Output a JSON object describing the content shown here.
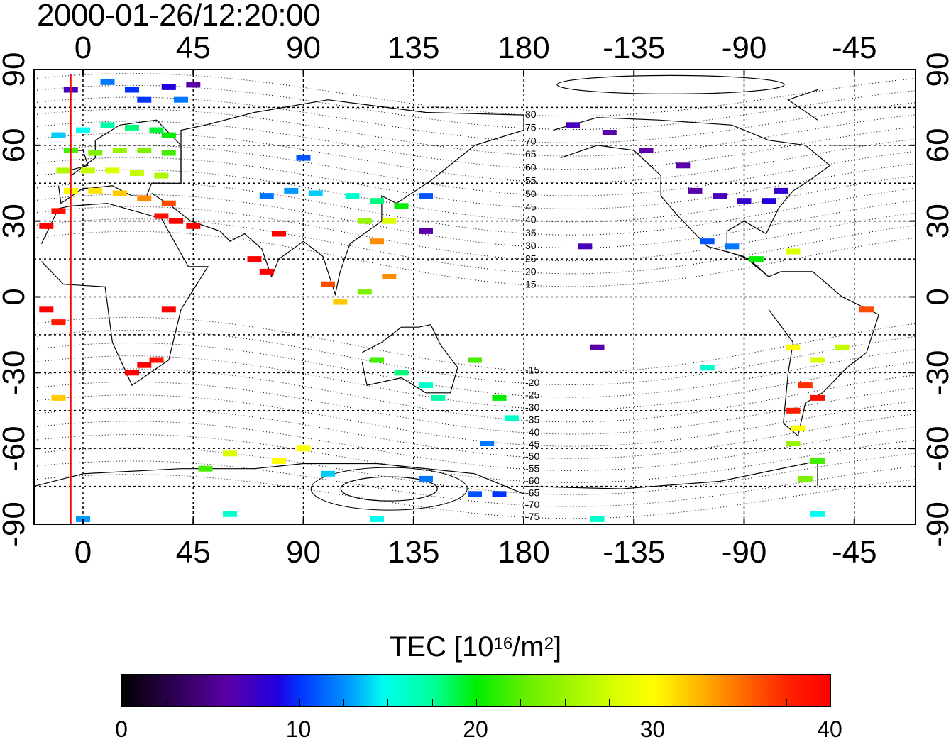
{
  "title": "2000-01-26/12:20:00",
  "axes": {
    "lon_ticks": [
      "0",
      "45",
      "90",
      "135",
      "180",
      "-135",
      "-90",
      "-45"
    ],
    "lat_ticks": [
      "90",
      "60",
      "30",
      "0",
      "-30",
      "-60",
      "-90"
    ]
  },
  "magnetic_lat_labels": [
    "80",
    "75",
    "70",
    "65",
    "60",
    "55",
    "50",
    "45",
    "40",
    "35",
    "30",
    "25",
    "20",
    "15",
    "-15",
    "-20",
    "-25",
    "-30",
    "-35",
    "-40",
    "-45",
    "-50",
    "-55",
    "-60",
    "-65",
    "-70",
    "-75"
  ],
  "colorbar": {
    "title_prefix": "TEC  [10",
    "title_sup1": "16",
    "title_mid": "/m",
    "title_sup2": "2",
    "title_suffix": "]",
    "tick_labels": [
      "0",
      "10",
      "20",
      "30",
      "40"
    ],
    "min": 0,
    "max": 40
  },
  "terminator_line_color": "#ff0000",
  "tec_points": [
    {
      "lon": -5,
      "lat": 82,
      "tec": 7
    },
    {
      "lon": 10,
      "lat": 85,
      "tec": 12
    },
    {
      "lon": 20,
      "lat": 82,
      "tec": 10
    },
    {
      "lon": 35,
      "lat": 83,
      "tec": 9
    },
    {
      "lon": 25,
      "lat": 78,
      "tec": 10
    },
    {
      "lon": 40,
      "lat": 78,
      "tec": 12
    },
    {
      "lon": 45,
      "lat": 84,
      "tec": 6
    },
    {
      "lon": -10,
      "lat": 64,
      "tec": 14
    },
    {
      "lon": 0,
      "lat": 66,
      "tec": 15
    },
    {
      "lon": 10,
      "lat": 68,
      "tec": 17
    },
    {
      "lon": 20,
      "lat": 67,
      "tec": 18
    },
    {
      "lon": 30,
      "lat": 66,
      "tec": 19
    },
    {
      "lon": 35,
      "lat": 64,
      "tec": 20
    },
    {
      "lon": -5,
      "lat": 58,
      "tec": 22
    },
    {
      "lon": 5,
      "lat": 57,
      "tec": 24
    },
    {
      "lon": 15,
      "lat": 58,
      "tec": 25
    },
    {
      "lon": 25,
      "lat": 58,
      "tec": 24
    },
    {
      "lon": 35,
      "lat": 57,
      "tec": 22
    },
    {
      "lon": -8,
      "lat": 50,
      "tec": 26
    },
    {
      "lon": 2,
      "lat": 50,
      "tec": 27
    },
    {
      "lon": 12,
      "lat": 50,
      "tec": 28
    },
    {
      "lon": 22,
      "lat": 49,
      "tec": 27
    },
    {
      "lon": 32,
      "lat": 48,
      "tec": 26
    },
    {
      "lon": -5,
      "lat": 42,
      "tec": 30
    },
    {
      "lon": 5,
      "lat": 42,
      "tec": 31
    },
    {
      "lon": 15,
      "lat": 41,
      "tec": 32
    },
    {
      "lon": 25,
      "lat": 39,
      "tec": 34
    },
    {
      "lon": 35,
      "lat": 37,
      "tec": 36
    },
    {
      "lon": 32,
      "lat": 32,
      "tec": 39
    },
    {
      "lon": 38,
      "lat": 30,
      "tec": 40
    },
    {
      "lon": 45,
      "lat": 28,
      "tec": 40
    },
    {
      "lon": -15,
      "lat": 28,
      "tec": 40
    },
    {
      "lon": -10,
      "lat": 34,
      "tec": 39
    },
    {
      "lon": 75,
      "lat": 40,
      "tec": 12
    },
    {
      "lon": 85,
      "lat": 42,
      "tec": 13
    },
    {
      "lon": 95,
      "lat": 41,
      "tec": 14
    },
    {
      "lon": 90,
      "lat": 55,
      "tec": 11
    },
    {
      "lon": 110,
      "lat": 40,
      "tec": 16
    },
    {
      "lon": 120,
      "lat": 38,
      "tec": 18
    },
    {
      "lon": 130,
      "lat": 36,
      "tec": 20
    },
    {
      "lon": 140,
      "lat": 40,
      "tec": 11
    },
    {
      "lon": 115,
      "lat": 30,
      "tec": 25
    },
    {
      "lon": 125,
      "lat": 30,
      "tec": 28
    },
    {
      "lon": 120,
      "lat": 22,
      "tec": 34
    },
    {
      "lon": 140,
      "lat": 26,
      "tec": 6
    },
    {
      "lon": 100,
      "lat": 5,
      "tec": 36
    },
    {
      "lon": 105,
      "lat": -2,
      "tec": 32
    },
    {
      "lon": 115,
      "lat": 2,
      "tec": 24
    },
    {
      "lon": 125,
      "lat": 8,
      "tec": 34
    },
    {
      "lon": 80,
      "lat": 25,
      "tec": 40
    },
    {
      "lon": 75,
      "lat": 10,
      "tec": 40
    },
    {
      "lon": 70,
      "lat": 15,
      "tec": 40
    },
    {
      "lon": 120,
      "lat": -25,
      "tec": 22
    },
    {
      "lon": 130,
      "lat": -30,
      "tec": 18
    },
    {
      "lon": 140,
      "lat": -35,
      "tec": 16
    },
    {
      "lon": 145,
      "lat": -40,
      "tec": 17
    },
    {
      "lon": 160,
      "lat": -25,
      "tec": 22
    },
    {
      "lon": 170,
      "lat": -40,
      "tec": 20
    },
    {
      "lon": 175,
      "lat": -48,
      "tec": 16
    },
    {
      "lon": 165,
      "lat": -58,
      "tec": 12
    },
    {
      "lon": 20,
      "lat": -30,
      "tec": 40
    },
    {
      "lon": 25,
      "lat": -27,
      "tec": 40
    },
    {
      "lon": 30,
      "lat": -25,
      "tec": 39
    },
    {
      "lon": 35,
      "lat": -5,
      "tec": 40
    },
    {
      "lon": -15,
      "lat": -5,
      "tec": 40
    },
    {
      "lon": -10,
      "lat": -10,
      "tec": 38
    },
    {
      "lon": -10,
      "lat": -40,
      "tec": 32
    },
    {
      "lon": -160,
      "lat": 68,
      "tec": 7
    },
    {
      "lon": -145,
      "lat": 65,
      "tec": 6
    },
    {
      "lon": -130,
      "lat": 58,
      "tec": 6
    },
    {
      "lon": -115,
      "lat": 52,
      "tec": 6
    },
    {
      "lon": -110,
      "lat": 42,
      "tec": 6
    },
    {
      "lon": -100,
      "lat": 40,
      "tec": 7
    },
    {
      "lon": -90,
      "lat": 38,
      "tec": 8
    },
    {
      "lon": -80,
      "lat": 38,
      "tec": 9
    },
    {
      "lon": -75,
      "lat": 42,
      "tec": 8
    },
    {
      "lon": -105,
      "lat": 22,
      "tec": 11
    },
    {
      "lon": -95,
      "lat": 20,
      "tec": 12
    },
    {
      "lon": -85,
      "lat": 15,
      "tec": 20
    },
    {
      "lon": -70,
      "lat": 18,
      "tec": 28
    },
    {
      "lon": -155,
      "lat": 20,
      "tec": 7
    },
    {
      "lon": -150,
      "lat": -20,
      "tec": 6
    },
    {
      "lon": -105,
      "lat": -28,
      "tec": 16
    },
    {
      "lon": -70,
      "lat": -20,
      "tec": 30
    },
    {
      "lon": -60,
      "lat": -25,
      "tec": 28
    },
    {
      "lon": -50,
      "lat": -20,
      "tec": 27
    },
    {
      "lon": -40,
      "lat": -5,
      "tec": 36
    },
    {
      "lon": -65,
      "lat": -35,
      "tec": 37
    },
    {
      "lon": -60,
      "lat": -40,
      "tec": 39
    },
    {
      "lon": -70,
      "lat": -45,
      "tec": 38
    },
    {
      "lon": -68,
      "lat": -52,
      "tec": 30
    },
    {
      "lon": -70,
      "lat": -58,
      "tec": 25
    },
    {
      "lon": -60,
      "lat": -65,
      "tec": 22
    },
    {
      "lon": -65,
      "lat": -72,
      "tec": 24
    },
    {
      "lon": 60,
      "lat": -62,
      "tec": 28
    },
    {
      "lon": 80,
      "lat": -65,
      "tec": 30
    },
    {
      "lon": 90,
      "lat": -60,
      "tec": 30
    },
    {
      "lon": 50,
      "lat": -68,
      "tec": 22
    },
    {
      "lon": 100,
      "lat": -70,
      "tec": 14
    },
    {
      "lon": 140,
      "lat": -72,
      "tec": 12
    },
    {
      "lon": 160,
      "lat": -78,
      "tec": 11
    },
    {
      "lon": 170,
      "lat": -78,
      "tec": 10
    },
    {
      "lon": 0,
      "lat": -88,
      "tec": 13
    },
    {
      "lon": 60,
      "lat": -86,
      "tec": 16
    },
    {
      "lon": 120,
      "lat": -88,
      "tec": 15
    },
    {
      "lon": -150,
      "lat": -88,
      "tec": 16
    },
    {
      "lon": -60,
      "lat": -86,
      "tec": 15
    }
  ]
}
